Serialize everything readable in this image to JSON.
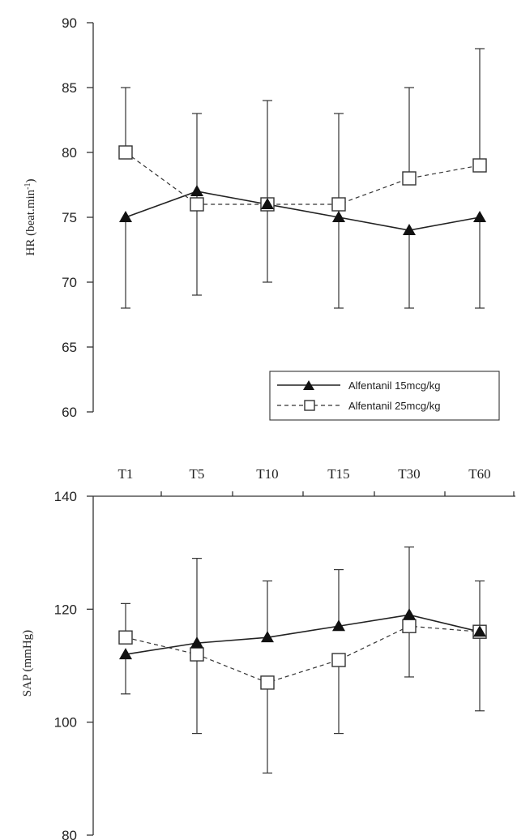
{
  "chart_data": [
    {
      "type": "line",
      "categories": [
        "T1",
        "T5",
        "T10",
        "T15",
        "T30",
        "T60"
      ],
      "ylabel_main": "HR (beat.min",
      "ylabel_sup": "-1",
      "ylabel_end": ")",
      "ylim": [
        60,
        90
      ],
      "yticks": [
        "60",
        "65",
        "70",
        "75",
        "80",
        "85",
        "90"
      ],
      "legend_position": "bottom-right",
      "series": [
        {
          "name": "Alfentanil 15mcg/kg",
          "marker": "filled-triangle",
          "line": "solid",
          "values": [
            75,
            77,
            76,
            75,
            74,
            75
          ],
          "upper": [
            null,
            83,
            84,
            83,
            null,
            null
          ],
          "lower": [
            68,
            69,
            70,
            68,
            68,
            68
          ]
        },
        {
          "name": "Alfentanil 25mcg/kg",
          "marker": "open-square",
          "line": "dashed",
          "values": [
            80,
            76,
            76,
            76,
            78,
            79
          ],
          "upper": [
            85,
            null,
            null,
            null,
            85,
            88
          ],
          "lower": [
            null,
            null,
            null,
            null,
            null,
            null
          ]
        }
      ]
    },
    {
      "type": "line",
      "categories": [
        "T1",
        "T5",
        "T10",
        "T15",
        "T30",
        "T60"
      ],
      "ylabel": "SAP (mmHg)",
      "ylim": [
        80,
        140
      ],
      "yticks": [
        "80",
        "100",
        "120",
        "140"
      ],
      "series": [
        {
          "marker": "filled-triangle",
          "line": "solid",
          "values": [
            112,
            114,
            115,
            117,
            119,
            116
          ],
          "upper": [
            null,
            129,
            125,
            127,
            131,
            null
          ],
          "lower": [
            105,
            null,
            null,
            null,
            108,
            null
          ]
        },
        {
          "marker": "open-square",
          "line": "dashed",
          "values": [
            115,
            112,
            107,
            111,
            117,
            116
          ],
          "upper": [
            121,
            null,
            null,
            null,
            null,
            125
          ],
          "lower": [
            null,
            98,
            91,
            98,
            null,
            102
          ]
        }
      ]
    }
  ]
}
